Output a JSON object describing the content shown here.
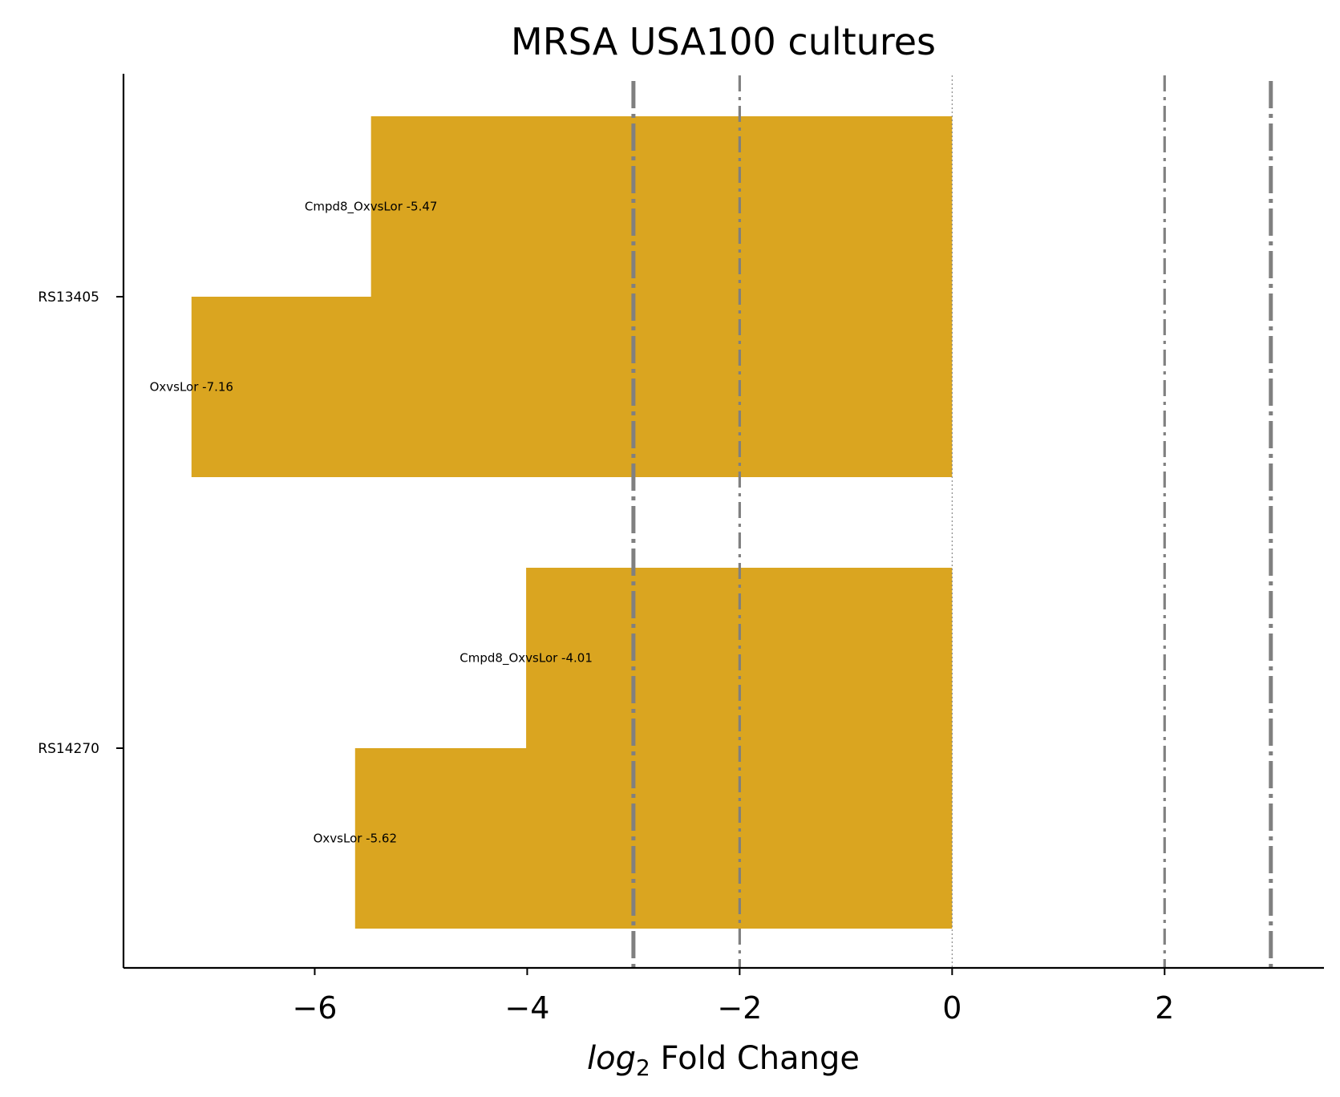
{
  "chart_data": {
    "type": "bar",
    "orientation": "horizontal",
    "title": "MRSA USA100 cultures",
    "xlabel_italic": "log",
    "xlabel_subscript": "2",
    "xlabel_rest": " Fold Change",
    "xlim": [
      -7.8,
      3.5
    ],
    "xticks": [
      -6,
      -4,
      -2,
      0,
      2
    ],
    "xtick_labels": [
      "−6",
      "−4",
      "−2",
      "0",
      "2"
    ],
    "categories": [
      "RS13405",
      "RS14270"
    ],
    "bar_color": "#DAA520",
    "series": [
      {
        "name": "Cmpd8_OxvsLor",
        "values": [
          -5.47,
          -4.01
        ],
        "labels": [
          "Cmpd8_OxvsLor -5.47",
          "Cmpd8_OxvsLor -4.01"
        ]
      },
      {
        "name": "OxvsLor",
        "values": [
          -7.16,
          -5.62
        ],
        "labels": [
          "OxvsLor -7.16",
          "OxvsLor -5.62"
        ]
      }
    ],
    "reference_lines": [
      {
        "x": -3,
        "style": "dashdot",
        "weight": "thick"
      },
      {
        "x": -2,
        "style": "dashdot",
        "weight": "thin"
      },
      {
        "x": 0,
        "style": "dotted",
        "weight": "hair"
      },
      {
        "x": 2,
        "style": "dashdot",
        "weight": "thin"
      },
      {
        "x": 3,
        "style": "dashdot",
        "weight": "thick"
      }
    ],
    "reference_line_color": "#808080",
    "grid": false,
    "legend": "none"
  }
}
